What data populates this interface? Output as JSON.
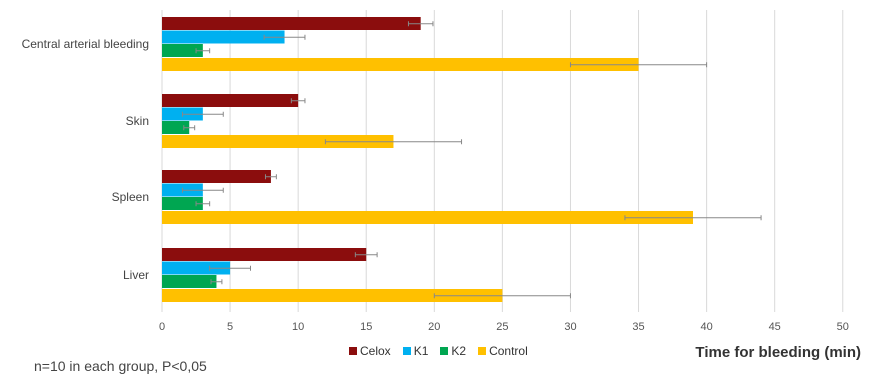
{
  "chart_data": {
    "type": "bar",
    "orientation": "horizontal",
    "categories": [
      "Central arterial bleeding",
      "Skin",
      "Spleen",
      "Liver"
    ],
    "series": [
      {
        "name": "Celox",
        "color": "#8b0d0d",
        "values": [
          19,
          10,
          8,
          15
        ],
        "errors": [
          0.9,
          0.5,
          0.4,
          0.8
        ]
      },
      {
        "name": "K1",
        "color": "#00b0f0",
        "values": [
          9,
          3,
          3,
          5
        ],
        "errors": [
          1.5,
          1.5,
          1.5,
          1.5
        ]
      },
      {
        "name": "K2",
        "color": "#00a651",
        "values": [
          3,
          2,
          3,
          4
        ],
        "errors": [
          0.5,
          0.4,
          0.5,
          0.4
        ]
      },
      {
        "name": "Control",
        "color": "#ffc000",
        "values": [
          35,
          17,
          39,
          25
        ],
        "errors": [
          5,
          5,
          5,
          5
        ]
      }
    ],
    "x_ticks": [
      0,
      5,
      10,
      15,
      20,
      25,
      30,
      35,
      40,
      45,
      50
    ],
    "xlim": [
      0,
      52
    ],
    "xlabel": "Time for bleeding (min)",
    "ylabel": "",
    "grid": true,
    "legend_position": "bottom",
    "error_bar_color": "#888888"
  },
  "footnote": "n=10 in each group, P<0,05"
}
